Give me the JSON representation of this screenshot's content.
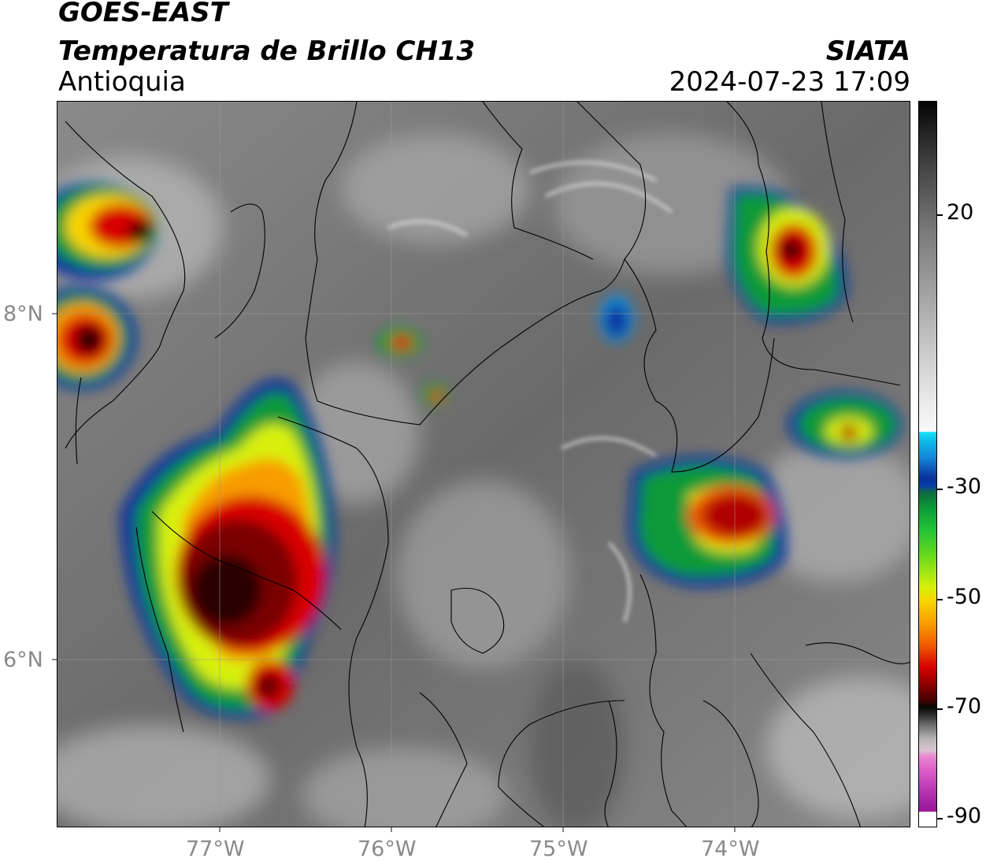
{
  "header": {
    "satellite": "GOES-EAST",
    "product": "Temperatura de Brillo CH13",
    "region": "Antioquia",
    "organization": "SIATA",
    "datetime": "2024-07-23 17:09"
  },
  "axes": {
    "x_ticks": [
      "77°W",
      "76°W",
      "75°W",
      "74°W"
    ],
    "y_ticks": [
      "8°N",
      "6°N"
    ]
  },
  "colorbar": {
    "labels": [
      "20",
      "-30",
      "-50",
      "-70",
      "-90"
    ],
    "colors": {
      "cold_top": "#050505",
      "cyan": "#16e0f8",
      "blue": "#0a2f9c",
      "green": "#0c9a38",
      "yellow": "#f8d400",
      "red": "#d80000",
      "dark_red": "#4a0000",
      "magenta": "#e060c8",
      "purple": "#9a1a9a"
    }
  }
}
